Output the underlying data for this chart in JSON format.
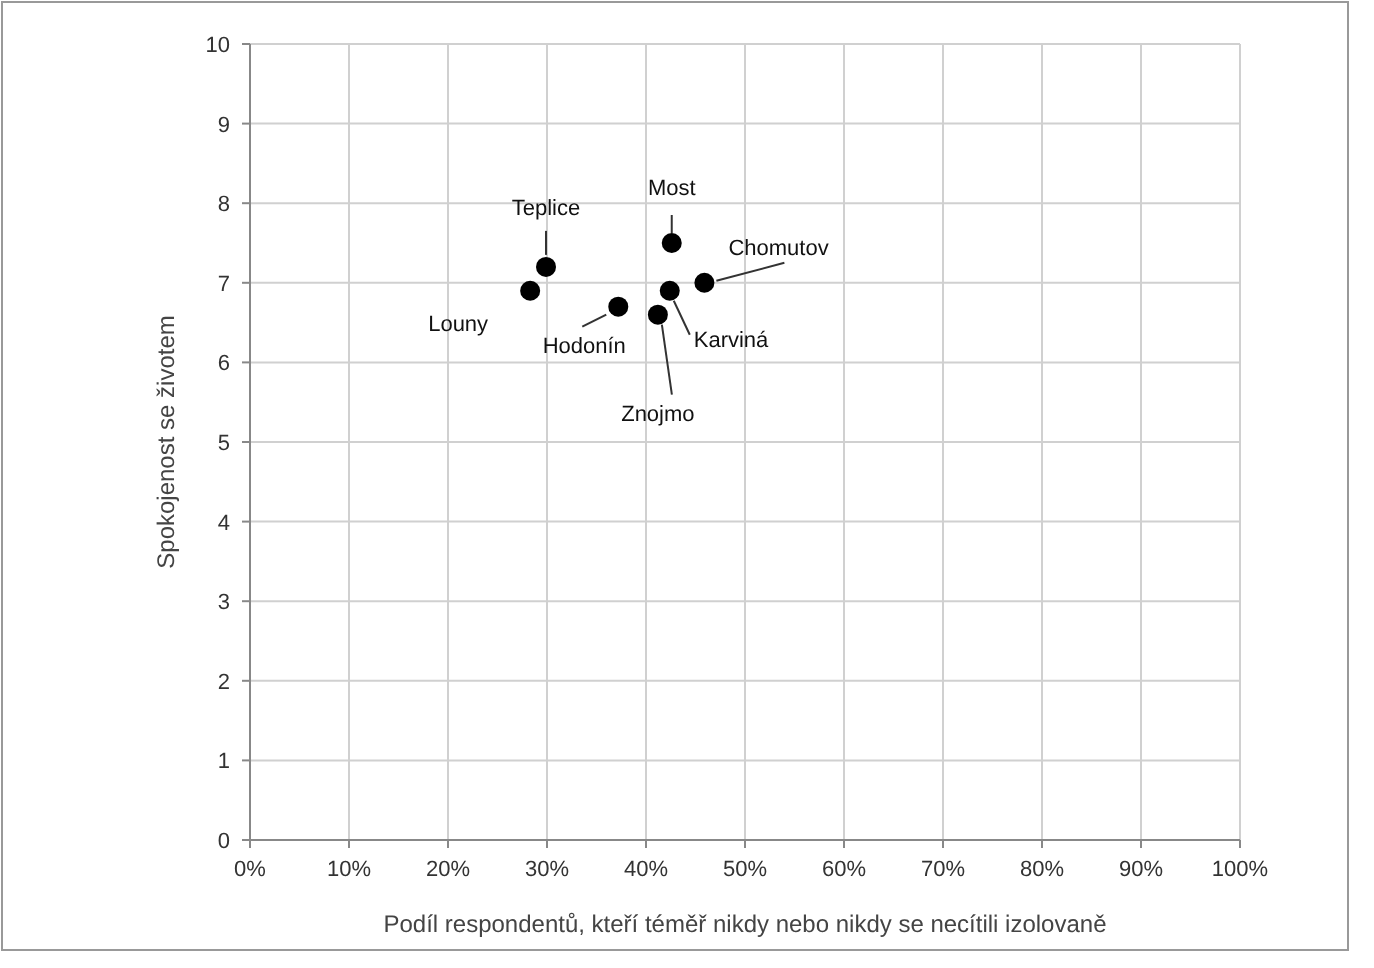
{
  "chart_data": {
    "type": "scatter",
    "xlabel": "Podíl respondentů, kteří téměř nikdy nebo nikdy se necítili izolovaně",
    "ylabel": "Spokojenost se životem",
    "xlim": [
      0,
      100
    ],
    "ylim": [
      0,
      10
    ],
    "xticks": [
      {
        "value": 0,
        "label": "0%"
      },
      {
        "value": 10,
        "label": "10%"
      },
      {
        "value": 20,
        "label": "20%"
      },
      {
        "value": 30,
        "label": "30%"
      },
      {
        "value": 40,
        "label": "40%"
      },
      {
        "value": 50,
        "label": "50%"
      },
      {
        "value": 60,
        "label": "60%"
      },
      {
        "value": 70,
        "label": "70%"
      },
      {
        "value": 80,
        "label": "80%"
      },
      {
        "value": 90,
        "label": "90%"
      },
      {
        "value": 100,
        "label": "100%"
      }
    ],
    "yticks": [
      0,
      1,
      2,
      3,
      4,
      5,
      6,
      7,
      8,
      9,
      10
    ],
    "grid": true,
    "marker": "circle",
    "series": [
      {
        "name": "Teplice",
        "color": "#000000",
        "x": [
          29.9
        ],
        "values": [
          7.2
        ]
      },
      {
        "name": "Louny",
        "color": "#000000",
        "x": [
          28.3
        ],
        "values": [
          6.9
        ]
      },
      {
        "name": "Hodonín",
        "color": "#000000",
        "x": [
          37.2
        ],
        "values": [
          6.7
        ]
      },
      {
        "name": "Most",
        "color": "#000000",
        "x": [
          42.6
        ],
        "values": [
          7.5
        ]
      },
      {
        "name": "Chomutov",
        "color": "#000000",
        "x": [
          45.9
        ],
        "values": [
          7.0
        ]
      },
      {
        "name": "Karviná",
        "color": "#000000",
        "x": [
          42.4
        ],
        "values": [
          6.9
        ]
      },
      {
        "name": "Znojmo",
        "color": "#000000",
        "x": [
          41.2
        ],
        "values": [
          6.6
        ]
      }
    ]
  }
}
